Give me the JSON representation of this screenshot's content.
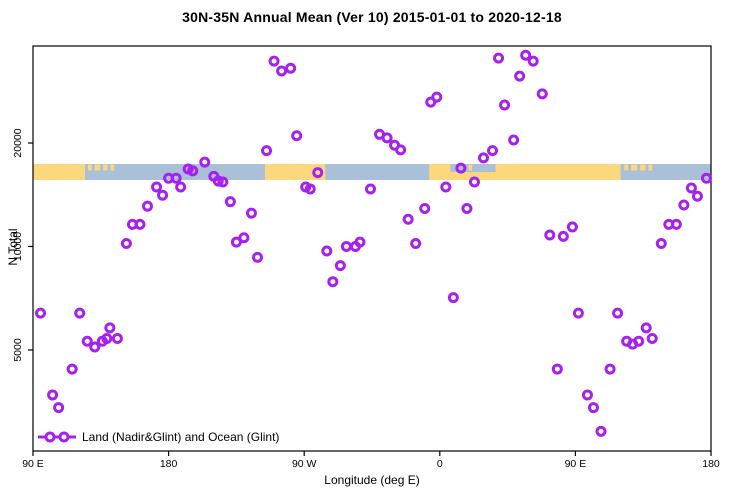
{
  "title": "30N-35N Annual Mean (Ver 10)   2015-01-01 to 2020-12-18",
  "axes": {
    "x_label": "Longitude (deg E)",
    "y_label": "N Total",
    "x_ticks": [
      {
        "deg": 90,
        "label": "90 E"
      },
      {
        "deg": 180,
        "label": "180"
      },
      {
        "deg": 270,
        "label": "90 W"
      },
      {
        "deg": 360,
        "label": "0"
      },
      {
        "deg": 450,
        "label": "90 E"
      },
      {
        "deg": 540,
        "label": "180"
      }
    ],
    "y_ticks": [
      {
        "value": 5000,
        "label": "5000"
      },
      {
        "value": 10000,
        "label": "10000"
      },
      {
        "value": 20000,
        "label": "20000"
      }
    ]
  },
  "legend": {
    "label": "Land (Nadir&Glint) and Ocean (Glint)"
  },
  "colors": {
    "point": "#A620EE",
    "land": "#FBD87E",
    "ocean": "#A9C0D8",
    "axis": "#000000",
    "text": "#000000"
  },
  "chart_data": {
    "type": "scatter",
    "title": "30N-35N Annual Mean (Ver 10)   2015-01-01 to 2020-12-18",
    "xlabel": "Longitude (deg E)",
    "ylabel": "N Total",
    "x_axis_note": "axis wraps eastward: 90E -> 180 -> 90W -> 0 -> 90E -> 180 (450 deg span); x values are degrees along this extended axis",
    "x_range_deg": [
      90,
      540
    ],
    "y_scale": "log",
    "y_range": [
      2540,
      38300
    ],
    "grid": false,
    "legend_position": "bottom-left",
    "points_format": [
      "longitude_deg_along_axis",
      "n_total"
    ],
    "points": [
      [
        95,
        6400
      ],
      [
        103,
        3700
      ],
      [
        107,
        3400
      ],
      [
        116,
        4400
      ],
      [
        121,
        6400
      ],
      [
        126,
        5300
      ],
      [
        131,
        5100
      ],
      [
        136,
        5300
      ],
      [
        139,
        5400
      ],
      [
        141,
        5800
      ],
      [
        146,
        5400
      ],
      [
        152,
        10200
      ],
      [
        156,
        11600
      ],
      [
        161,
        11600
      ],
      [
        166,
        13100
      ],
      [
        172,
        14900
      ],
      [
        176,
        14100
      ],
      [
        180,
        15800
      ],
      [
        185,
        15800
      ],
      [
        188,
        14900
      ],
      [
        193,
        16800
      ],
      [
        196,
        16600
      ],
      [
        204,
        17600
      ],
      [
        210,
        16000
      ],
      [
        213,
        15500
      ],
      [
        216,
        15400
      ],
      [
        221,
        13500
      ],
      [
        225,
        10300
      ],
      [
        230,
        10600
      ],
      [
        235,
        12500
      ],
      [
        239,
        9300
      ],
      [
        245,
        19000
      ],
      [
        250,
        34600
      ],
      [
        255,
        32400
      ],
      [
        261,
        33000
      ],
      [
        265,
        21000
      ],
      [
        271,
        14900
      ],
      [
        274,
        14700
      ],
      [
        279,
        16400
      ],
      [
        285,
        9700
      ],
      [
        289,
        7900
      ],
      [
        294,
        8800
      ],
      [
        298,
        10000
      ],
      [
        304,
        10000
      ],
      [
        307,
        10300
      ],
      [
        314,
        14700
      ],
      [
        320,
        21200
      ],
      [
        325,
        20700
      ],
      [
        330,
        19700
      ],
      [
        334,
        19100
      ],
      [
        339,
        12000
      ],
      [
        344,
        10200
      ],
      [
        350,
        12900
      ],
      [
        354,
        26300
      ],
      [
        358,
        27200
      ],
      [
        364,
        14900
      ],
      [
        369,
        7100
      ],
      [
        374,
        16900
      ],
      [
        378,
        12900
      ],
      [
        383,
        15400
      ],
      [
        389,
        18100
      ],
      [
        395,
        19000
      ],
      [
        399,
        35300
      ],
      [
        403,
        25800
      ],
      [
        409,
        20400
      ],
      [
        413,
        31300
      ],
      [
        417,
        36000
      ],
      [
        422,
        34600
      ],
      [
        428,
        27800
      ],
      [
        433,
        10800
      ],
      [
        438,
        4400
      ],
      [
        442,
        10700
      ],
      [
        448,
        11400
      ],
      [
        452,
        6400
      ],
      [
        458,
        3700
      ],
      [
        462,
        3400
      ],
      [
        467,
        2900
      ],
      [
        473,
        4400
      ],
      [
        478,
        6400
      ],
      [
        484,
        5300
      ],
      [
        488,
        5200
      ],
      [
        492,
        5300
      ],
      [
        497,
        5800
      ],
      [
        501,
        5400
      ],
      [
        507,
        10200
      ],
      [
        512,
        11600
      ],
      [
        517,
        11600
      ],
      [
        522,
        13200
      ],
      [
        527,
        14800
      ],
      [
        531,
        14000
      ],
      [
        537,
        15800
      ]
    ],
    "map_strip": {
      "description": "horizontal land/ocean map band across plot showing 30N-35N surface type vs longitude",
      "ocean_segment": {
        "from": 90,
        "to": 540
      },
      "land_segments": [
        {
          "from": 90,
          "to": 124.5
        },
        {
          "from": 244,
          "to": 284
        },
        {
          "from": 353,
          "to": 480
        }
      ],
      "sea_notches_top_half": [
        {
          "from": 367,
          "to": 397
        }
      ],
      "island_specks": [
        {
          "from": 126.5,
          "to": 129
        },
        {
          "from": 131,
          "to": 134.5
        },
        {
          "from": 136.5,
          "to": 139.5
        },
        {
          "from": 141.5,
          "to": 144
        },
        {
          "from": 379,
          "to": 381.5
        },
        {
          "from": 482.5,
          "to": 485
        },
        {
          "from": 487,
          "to": 491
        },
        {
          "from": 493,
          "to": 496.5
        },
        {
          "from": 498.5,
          "to": 501
        }
      ]
    }
  }
}
